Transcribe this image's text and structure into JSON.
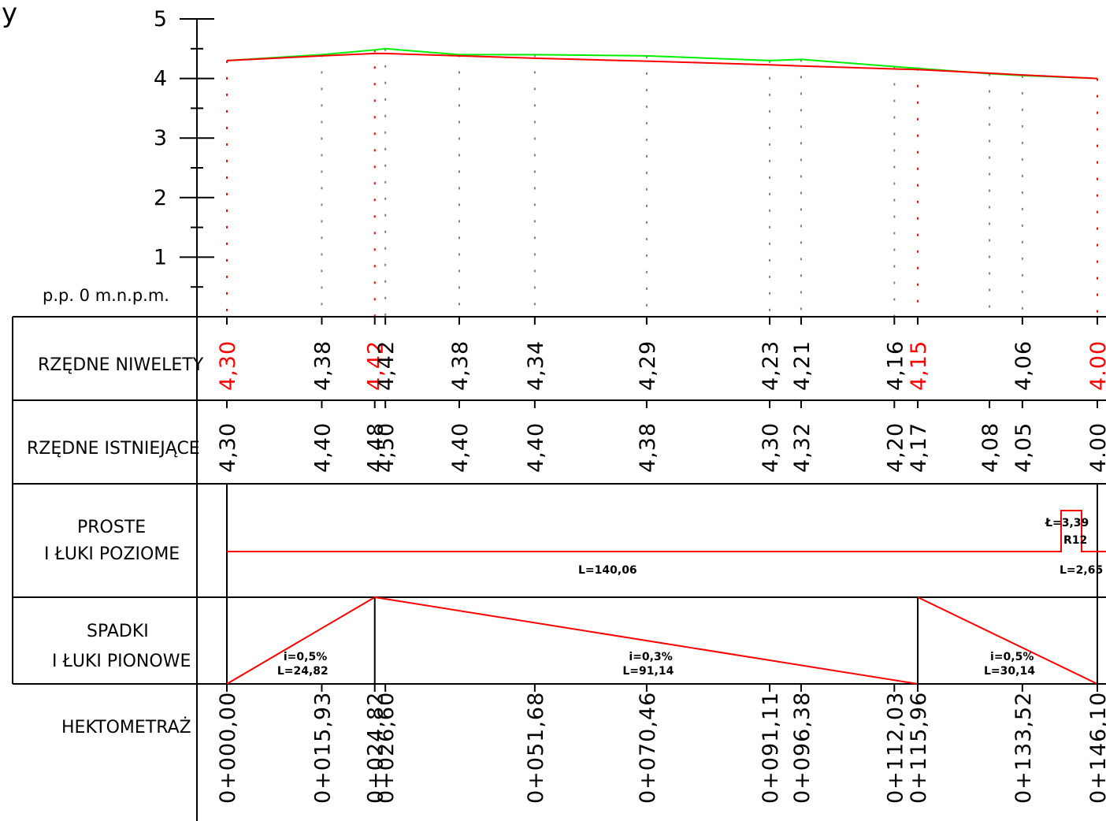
{
  "axis": {
    "name": "y",
    "datum_label": "p.p. 0 m.n.p.m.",
    "ticks": [
      5,
      4,
      3,
      2,
      1
    ]
  },
  "rows": {
    "niwelety": "RZĘDNE NIWELETY",
    "istniejace": "RZĘDNE ISTNIEJĄCE",
    "proste_1": "PROSTE",
    "proste_2": "I ŁUKI POZIOME",
    "spadki_1": "SPADKI",
    "spadki_2": "I ŁUKI PIONOWE",
    "hektometraz": "HEKTOMETRAŻ"
  },
  "colors": {
    "design_line": "#ff0000",
    "terrain_line": "#00ee00",
    "grid_dash": "#808080",
    "ink": "#000000"
  },
  "chart_data": {
    "type": "line",
    "x": [
      0.0,
      15.93,
      24.82,
      26.6,
      39.0,
      51.68,
      70.46,
      91.11,
      96.38,
      112.03,
      115.96,
      128.0,
      133.52,
      146.1
    ],
    "series": [
      {
        "values": [
          4.3,
          4.38,
          4.42,
          4.42,
          4.38,
          4.34,
          4.29,
          4.23,
          4.21,
          4.16,
          4.15,
          null,
          4.06,
          4.0
        ]
      },
      {
        "values": [
          4.3,
          4.4,
          4.48,
          4.5,
          4.4,
          4.4,
          4.38,
          4.3,
          4.32,
          4.2,
          4.17,
          4.08,
          4.05,
          4.0
        ]
      }
    ],
    "ylim": [
      0,
      5
    ],
    "yticks": [
      1,
      2,
      3,
      4,
      5
    ]
  },
  "niwelety": [
    {
      "value": "4,30",
      "x": 0.0,
      "red": true
    },
    {
      "value": "4,38",
      "x": 15.93,
      "red": false
    },
    {
      "value": "4,42",
      "x": 24.82,
      "red": true
    },
    {
      "value": "4,42",
      "x": 26.6,
      "red": false
    },
    {
      "value": "4,38",
      "x": 39.0,
      "red": false
    },
    {
      "value": "4,34",
      "x": 51.68,
      "red": false
    },
    {
      "value": "4,29",
      "x": 70.46,
      "red": false
    },
    {
      "value": "4,23",
      "x": 91.11,
      "red": false
    },
    {
      "value": "4,21",
      "x": 96.38,
      "red": false
    },
    {
      "value": "4,16",
      "x": 112.03,
      "red": false
    },
    {
      "value": "4,15",
      "x": 115.96,
      "red": true
    },
    {
      "value": "4,06",
      "x": 133.52,
      "red": false
    },
    {
      "value": "4.00",
      "x": 146.1,
      "red": true
    }
  ],
  "istniejace": [
    {
      "value": "4,30",
      "x": 0.0
    },
    {
      "value": "4,40",
      "x": 15.93
    },
    {
      "value": "4,48",
      "x": 24.82
    },
    {
      "value": "4,50",
      "x": 26.6
    },
    {
      "value": "4,40",
      "x": 39.0
    },
    {
      "value": "4,40",
      "x": 51.68
    },
    {
      "value": "4,38",
      "x": 70.46
    },
    {
      "value": "4,30",
      "x": 91.11
    },
    {
      "value": "4,32",
      "x": 96.38
    },
    {
      "value": "4,20",
      "x": 112.03
    },
    {
      "value": "4,17",
      "x": 115.96
    },
    {
      "value": "4,08",
      "x": 128.0
    },
    {
      "value": "4,05",
      "x": 133.52
    },
    {
      "value": "4.00",
      "x": 146.1
    }
  ],
  "hektometraz": [
    {
      "value": "0+000,00",
      "x": 0.0
    },
    {
      "value": "0+015,93",
      "x": 15.93
    },
    {
      "value": "0+024,82",
      "x": 24.82
    },
    {
      "value": "0+026,60",
      "x": 26.6
    },
    {
      "value": "0+051,68",
      "x": 51.68
    },
    {
      "value": "0+070,46",
      "x": 70.46
    },
    {
      "value": "0+091,11",
      "x": 91.11
    },
    {
      "value": "0+096,38",
      "x": 96.38
    },
    {
      "value": "0+112,03",
      "x": 112.03
    },
    {
      "value": "0+115,96",
      "x": 115.96
    },
    {
      "value": "0+133,52",
      "x": 133.52
    },
    {
      "value": "0+146,10",
      "x": 146.1
    }
  ],
  "horizontal": {
    "straight_label": "L=140,06",
    "arc_label_1": "Ł=3,39",
    "arc_label_2": "R12",
    "end_label": "L=2,65"
  },
  "vertical": [
    {
      "grade": "i=0,5%",
      "length": "L=24,82",
      "from": 0.0,
      "to": 24.82
    },
    {
      "grade": "i=0,3%",
      "length": "L=91,14",
      "from": 24.82,
      "to": 115.96
    },
    {
      "grade": "i=0,5%",
      "length": "L=30,14",
      "from": 115.96,
      "to": 146.1
    }
  ]
}
